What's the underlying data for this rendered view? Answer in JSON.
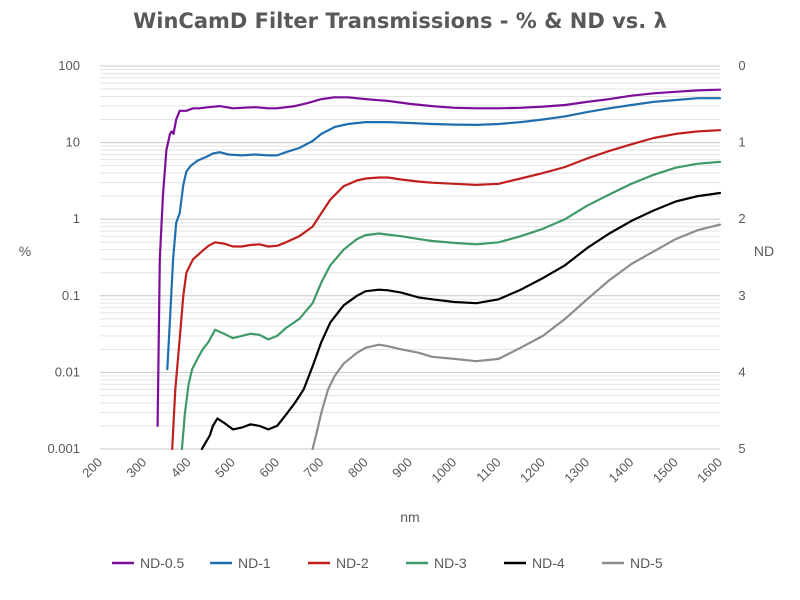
{
  "chart_data": {
    "type": "line",
    "title": "WinCamD Filter Transmissions - % & ND vs. λ",
    "xlabel": "nm",
    "ylabel": "%",
    "y2label": "ND",
    "xlim": [
      200,
      1600
    ],
    "ylim": [
      0.001,
      100
    ],
    "yscale": "log",
    "x_ticks": [
      "200",
      "300",
      "400",
      "500",
      "600",
      "700",
      "800",
      "900",
      "1000",
      "1100",
      "1200",
      "1300",
      "1400",
      "1500",
      "1600"
    ],
    "y_ticks": [
      "0.001",
      "0.01",
      "0.1",
      "1",
      "10",
      "100"
    ],
    "y2_ticks": [
      "5",
      "4",
      "3",
      "2",
      "1",
      "0"
    ],
    "grid": true,
    "legend_position": "bottom",
    "series": [
      {
        "name": "ND-0.5",
        "color": "#7B0F99",
        "points": [
          [
            330,
            0.002
          ],
          [
            335,
            0.3
          ],
          [
            342,
            2
          ],
          [
            350,
            8
          ],
          [
            358,
            13
          ],
          [
            362,
            14
          ],
          [
            366,
            13
          ],
          [
            372,
            20
          ],
          [
            380,
            26
          ],
          [
            395,
            26
          ],
          [
            410,
            28
          ],
          [
            425,
            28
          ],
          [
            445,
            29
          ],
          [
            470,
            30
          ],
          [
            500,
            28
          ],
          [
            550,
            29
          ],
          [
            580,
            28
          ],
          [
            600,
            28
          ],
          [
            640,
            30
          ],
          [
            670,
            33
          ],
          [
            700,
            37
          ],
          [
            730,
            39
          ],
          [
            760,
            39
          ],
          [
            800,
            37
          ],
          [
            850,
            35
          ],
          [
            900,
            32
          ],
          [
            950,
            30
          ],
          [
            1000,
            28.5
          ],
          [
            1050,
            28
          ],
          [
            1100,
            28
          ],
          [
            1150,
            28.5
          ],
          [
            1200,
            29.5
          ],
          [
            1250,
            31
          ],
          [
            1300,
            34
          ],
          [
            1350,
            37
          ],
          [
            1400,
            41
          ],
          [
            1450,
            44
          ],
          [
            1500,
            46
          ],
          [
            1550,
            48
          ],
          [
            1600,
            49
          ]
        ]
      },
      {
        "name": "ND-1",
        "color": "#1F6FAF",
        "points": [
          [
            352,
            0.011
          ],
          [
            358,
            0.05
          ],
          [
            365,
            0.3
          ],
          [
            372,
            0.9
          ],
          [
            380,
            1.2
          ],
          [
            388,
            2.8
          ],
          [
            395,
            4.2
          ],
          [
            405,
            5
          ],
          [
            420,
            5.8
          ],
          [
            440,
            6.5
          ],
          [
            455,
            7.2
          ],
          [
            470,
            7.5
          ],
          [
            490,
            7
          ],
          [
            520,
            6.8
          ],
          [
            550,
            7
          ],
          [
            580,
            6.8
          ],
          [
            600,
            6.8
          ],
          [
            620,
            7.5
          ],
          [
            650,
            8.5
          ],
          [
            680,
            10.5
          ],
          [
            700,
            13
          ],
          [
            730,
            16
          ],
          [
            760,
            17.5
          ],
          [
            800,
            18.5
          ],
          [
            850,
            18.5
          ],
          [
            900,
            18
          ],
          [
            950,
            17.5
          ],
          [
            1000,
            17.2
          ],
          [
            1050,
            17
          ],
          [
            1100,
            17.5
          ],
          [
            1150,
            18.5
          ],
          [
            1200,
            20
          ],
          [
            1250,
            22
          ],
          [
            1300,
            25
          ],
          [
            1350,
            28
          ],
          [
            1400,
            31
          ],
          [
            1450,
            34
          ],
          [
            1500,
            36
          ],
          [
            1550,
            38
          ],
          [
            1600,
            38
          ]
        ]
      },
      {
        "name": "ND-2",
        "color": "#C0201D",
        "points": [
          [
            363,
            0.001
          ],
          [
            370,
            0.006
          ],
          [
            378,
            0.02
          ],
          [
            388,
            0.1
          ],
          [
            395,
            0.2
          ],
          [
            410,
            0.3
          ],
          [
            430,
            0.38
          ],
          [
            445,
            0.45
          ],
          [
            460,
            0.5
          ],
          [
            480,
            0.48
          ],
          [
            500,
            0.44
          ],
          [
            520,
            0.44
          ],
          [
            540,
            0.46
          ],
          [
            560,
            0.47
          ],
          [
            580,
            0.44
          ],
          [
            600,
            0.45
          ],
          [
            620,
            0.5
          ],
          [
            650,
            0.6
          ],
          [
            680,
            0.8
          ],
          [
            700,
            1.2
          ],
          [
            720,
            1.8
          ],
          [
            750,
            2.7
          ],
          [
            780,
            3.2
          ],
          [
            800,
            3.4
          ],
          [
            830,
            3.5
          ],
          [
            850,
            3.5
          ],
          [
            880,
            3.3
          ],
          [
            920,
            3.1
          ],
          [
            950,
            3.0
          ],
          [
            1000,
            2.9
          ],
          [
            1050,
            2.8
          ],
          [
            1100,
            2.9
          ],
          [
            1150,
            3.4
          ],
          [
            1200,
            4
          ],
          [
            1250,
            4.8
          ],
          [
            1300,
            6.2
          ],
          [
            1350,
            7.8
          ],
          [
            1400,
            9.5
          ],
          [
            1450,
            11.5
          ],
          [
            1500,
            13
          ],
          [
            1550,
            14
          ],
          [
            1600,
            14.5
          ]
        ]
      },
      {
        "name": "ND-3",
        "color": "#3F9A66",
        "points": [
          [
            385,
            0.001
          ],
          [
            392,
            0.003
          ],
          [
            400,
            0.007
          ],
          [
            408,
            0.011
          ],
          [
            420,
            0.015
          ],
          [
            432,
            0.02
          ],
          [
            445,
            0.025
          ],
          [
            460,
            0.036
          ],
          [
            480,
            0.032
          ],
          [
            500,
            0.028
          ],
          [
            520,
            0.03
          ],
          [
            540,
            0.032
          ],
          [
            560,
            0.031
          ],
          [
            580,
            0.027
          ],
          [
            600,
            0.03
          ],
          [
            620,
            0.038
          ],
          [
            650,
            0.05
          ],
          [
            680,
            0.08
          ],
          [
            700,
            0.15
          ],
          [
            720,
            0.25
          ],
          [
            750,
            0.4
          ],
          [
            780,
            0.55
          ],
          [
            800,
            0.62
          ],
          [
            830,
            0.65
          ],
          [
            850,
            0.63
          ],
          [
            880,
            0.6
          ],
          [
            920,
            0.55
          ],
          [
            950,
            0.52
          ],
          [
            1000,
            0.49
          ],
          [
            1050,
            0.47
          ],
          [
            1100,
            0.5
          ],
          [
            1150,
            0.6
          ],
          [
            1200,
            0.75
          ],
          [
            1250,
            1
          ],
          [
            1300,
            1.5
          ],
          [
            1350,
            2.1
          ],
          [
            1400,
            2.9
          ],
          [
            1450,
            3.8
          ],
          [
            1500,
            4.7
          ],
          [
            1550,
            5.3
          ],
          [
            1600,
            5.6
          ]
        ]
      },
      {
        "name": "ND-4",
        "color": "#000000",
        "points": [
          [
            430,
            0.001
          ],
          [
            438,
            0.0012
          ],
          [
            448,
            0.0015
          ],
          [
            455,
            0.002
          ],
          [
            465,
            0.0025
          ],
          [
            480,
            0.0022
          ],
          [
            500,
            0.0018
          ],
          [
            520,
            0.0019
          ],
          [
            540,
            0.0021
          ],
          [
            560,
            0.002
          ],
          [
            580,
            0.0018
          ],
          [
            600,
            0.002
          ],
          [
            620,
            0.0028
          ],
          [
            640,
            0.004
          ],
          [
            660,
            0.006
          ],
          [
            680,
            0.012
          ],
          [
            700,
            0.025
          ],
          [
            720,
            0.045
          ],
          [
            750,
            0.075
          ],
          [
            780,
            0.1
          ],
          [
            800,
            0.115
          ],
          [
            830,
            0.12
          ],
          [
            850,
            0.118
          ],
          [
            880,
            0.11
          ],
          [
            920,
            0.095
          ],
          [
            950,
            0.09
          ],
          [
            1000,
            0.083
          ],
          [
            1050,
            0.08
          ],
          [
            1100,
            0.09
          ],
          [
            1150,
            0.12
          ],
          [
            1200,
            0.17
          ],
          [
            1250,
            0.25
          ],
          [
            1300,
            0.42
          ],
          [
            1350,
            0.65
          ],
          [
            1400,
            0.95
          ],
          [
            1450,
            1.3
          ],
          [
            1500,
            1.7
          ],
          [
            1550,
            2
          ],
          [
            1600,
            2.2
          ]
        ]
      },
      {
        "name": "ND-5",
        "color": "#8C8C8C",
        "points": [
          [
            680,
            0.001
          ],
          [
            690,
            0.0017
          ],
          [
            700,
            0.003
          ],
          [
            715,
            0.006
          ],
          [
            730,
            0.009
          ],
          [
            750,
            0.013
          ],
          [
            780,
            0.018
          ],
          [
            800,
            0.021
          ],
          [
            830,
            0.023
          ],
          [
            850,
            0.022
          ],
          [
            880,
            0.02
          ],
          [
            920,
            0.018
          ],
          [
            950,
            0.016
          ],
          [
            1000,
            0.015
          ],
          [
            1050,
            0.014
          ],
          [
            1100,
            0.015
          ],
          [
            1150,
            0.021
          ],
          [
            1200,
            0.03
          ],
          [
            1250,
            0.05
          ],
          [
            1300,
            0.09
          ],
          [
            1350,
            0.16
          ],
          [
            1400,
            0.26
          ],
          [
            1450,
            0.38
          ],
          [
            1500,
            0.55
          ],
          [
            1550,
            0.72
          ],
          [
            1600,
            0.85
          ]
        ]
      }
    ]
  }
}
